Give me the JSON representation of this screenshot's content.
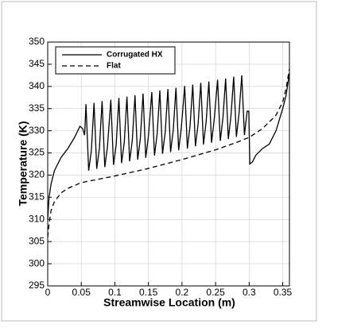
{
  "chart_data": {
    "type": "line",
    "xlabel": "Streamwise Location (m)",
    "ylabel": "Temperature (K)",
    "xlim": [
      0,
      0.36
    ],
    "ylim": [
      295,
      350
    ],
    "xticks": [
      0,
      0.05,
      0.1,
      0.15,
      0.2,
      0.25,
      0.3,
      0.35
    ],
    "yticks": [
      295,
      300,
      305,
      310,
      315,
      320,
      325,
      330,
      335,
      340,
      345,
      350
    ],
    "grid": true,
    "legend": "upper left",
    "series": [
      {
        "name": "Corrugated HX",
        "color": "#000000",
        "dash": "solid",
        "x": [
          0,
          0.002,
          0.005,
          0.01,
          0.02,
          0.03,
          0.04,
          0.048,
          0.052,
          0.055,
          0.057,
          0.061,
          0.065,
          0.069,
          0.073,
          0.077,
          0.081,
          0.085,
          0.089,
          0.094,
          0.098,
          0.102,
          0.106,
          0.11,
          0.114,
          0.118,
          0.122,
          0.126,
          0.13,
          0.134,
          0.138,
          0.142,
          0.146,
          0.15,
          0.155,
          0.159,
          0.163,
          0.167,
          0.171,
          0.175,
          0.179,
          0.183,
          0.187,
          0.191,
          0.195,
          0.199,
          0.204,
          0.208,
          0.212,
          0.216,
          0.22,
          0.224,
          0.228,
          0.232,
          0.236,
          0.24,
          0.244,
          0.248,
          0.253,
          0.257,
          0.261,
          0.265,
          0.269,
          0.273,
          0.277,
          0.281,
          0.285,
          0.289,
          0.293,
          0.297,
          0.2995,
          0.301,
          0.305,
          0.31,
          0.32,
          0.33,
          0.34,
          0.35,
          0.355,
          0.36
        ],
        "values": [
          310,
          315,
          318,
          321,
          324,
          326,
          328.5,
          331,
          330.5,
          329,
          336.0,
          321.0,
          325.5,
          336.3,
          321.4,
          326.0,
          336.7,
          321.8,
          326.4,
          337.0,
          322.3,
          326.9,
          337.4,
          322.7,
          327.4,
          337.7,
          323.1,
          327.9,
          338.0,
          323.5,
          328.3,
          338.4,
          323.9,
          328.8,
          338.7,
          324.4,
          329.3,
          339.1,
          324.8,
          329.7,
          339.4,
          325.2,
          330.2,
          339.7,
          325.6,
          330.7,
          340.1,
          326.0,
          331.1,
          340.4,
          326.5,
          331.6,
          340.8,
          326.9,
          332.1,
          341.1,
          327.3,
          332.6,
          341.5,
          327.7,
          333.0,
          341.8,
          328.1,
          333.5,
          342.2,
          328.6,
          334.0,
          342.5,
          329.0,
          334.4,
          334.4,
          322.5,
          323,
          324.5,
          326,
          327,
          330,
          335,
          338,
          343
        ]
      },
      {
        "name": "Flat",
        "color": "#000000",
        "dash": "dashed",
        "x": [
          0,
          0.002,
          0.005,
          0.01,
          0.02,
          0.03,
          0.05,
          0.1,
          0.15,
          0.2,
          0.25,
          0.28,
          0.3,
          0.32,
          0.34,
          0.35,
          0.355,
          0.36
        ],
        "values": [
          306,
          309,
          312,
          314,
          316,
          317,
          318.3,
          319.8,
          321.5,
          323.5,
          325.7,
          327.3,
          328.5,
          330.5,
          333.5,
          336.5,
          339.5,
          344
        ]
      }
    ]
  }
}
